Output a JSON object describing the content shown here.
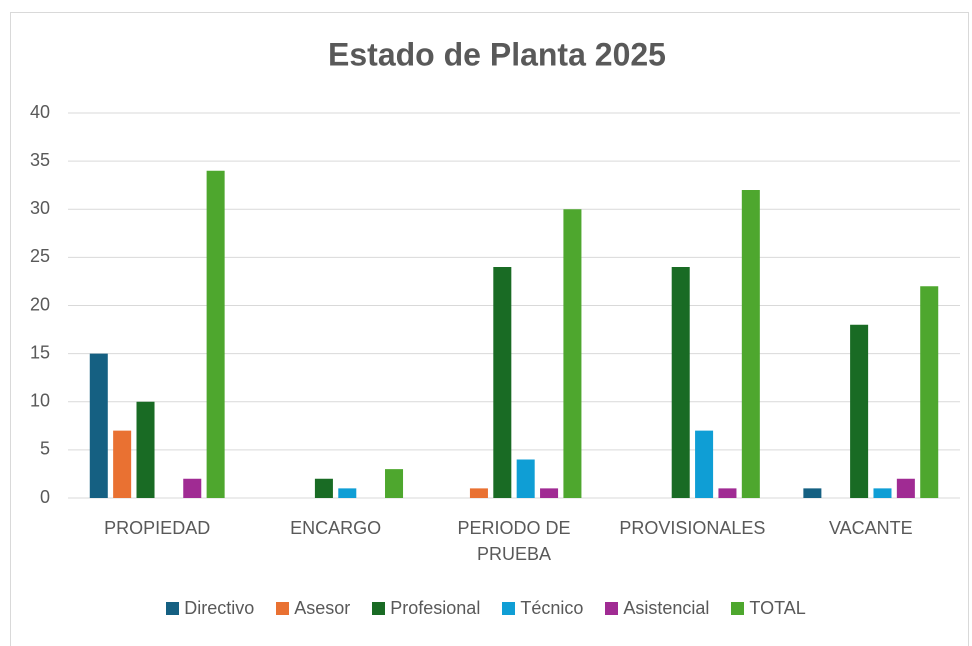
{
  "chart_data": {
    "type": "bar",
    "title": "Estado de Planta 2025",
    "categories": [
      "PROPIEDAD",
      "ENCARGO",
      "PERIODO DE PRUEBA",
      "PROVISIONALES",
      "VACANTE"
    ],
    "series": [
      {
        "name": "Directivo",
        "color": "#156082",
        "values": [
          15,
          0,
          0,
          0,
          1
        ]
      },
      {
        "name": "Asesor",
        "color": "#e97132",
        "values": [
          7,
          0,
          1,
          0,
          0
        ]
      },
      {
        "name": "Profesional",
        "color": "#196b24",
        "values": [
          10,
          2,
          24,
          24,
          18
        ]
      },
      {
        "name": "Técnico",
        "color": "#0f9ed5",
        "values": [
          0,
          1,
          4,
          7,
          1
        ]
      },
      {
        "name": "Asistencial",
        "color": "#a02b93",
        "values": [
          2,
          0,
          1,
          1,
          2
        ]
      },
      {
        "name": "TOTAL",
        "color": "#4ea72e",
        "values": [
          34,
          3,
          30,
          32,
          22
        ]
      }
    ],
    "ylim": [
      0,
      40
    ],
    "yticks": [
      0,
      5,
      10,
      15,
      20,
      25,
      30,
      35,
      40
    ],
    "grid": true,
    "legend": "bottom"
  }
}
